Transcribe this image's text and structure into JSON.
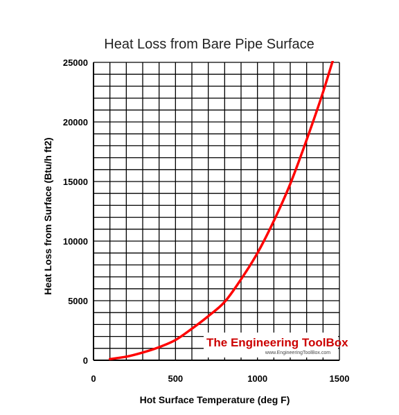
{
  "chart_data": {
    "type": "line",
    "title": "Heat Loss from Bare Pipe Surface",
    "xlabel": "Hot Surface Temperature (deg F)",
    "ylabel": "Heat Loss from Surface (Btu/h ft2)",
    "xlim": [
      0,
      1500
    ],
    "ylim": [
      0,
      25000
    ],
    "x_ticks": [
      "0",
      "500",
      "1000",
      "1500"
    ],
    "y_ticks": [
      "0",
      "5000",
      "10000",
      "15000",
      "20000",
      "25000"
    ],
    "grid": true,
    "series": [
      {
        "color": "#ff0000",
        "x": [
          100,
          200,
          300,
          400,
          500,
          600,
          700,
          800,
          900,
          1000,
          1100,
          1200,
          1300,
          1400,
          1500
        ],
        "y": [
          100,
          300,
          650,
          1100,
          1700,
          2650,
          3700,
          4900,
          6800,
          9000,
          11700,
          14800,
          18500,
          22500,
          27000
        ]
      }
    ]
  },
  "watermark": {
    "title": "The Engineering ToolBox",
    "url": "www.EngineeringToolBox.com"
  }
}
